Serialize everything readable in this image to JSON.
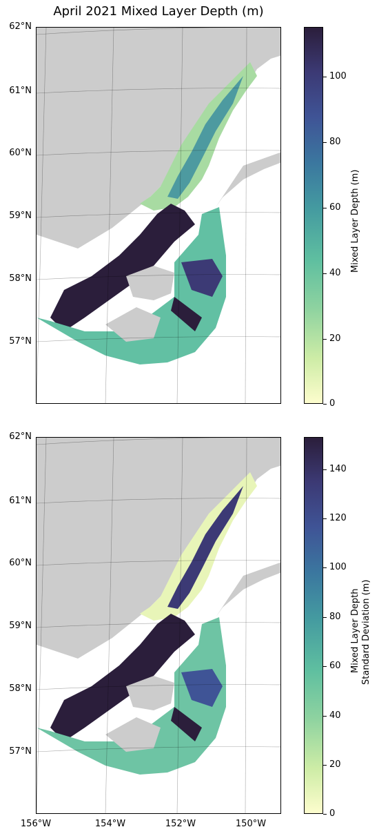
{
  "title": "April 2021 Mixed Layer Depth (m)",
  "lat_labels": [
    "62°N",
    "61°N",
    "60°N",
    "59°N",
    "58°N",
    "57°N"
  ],
  "lon_labels": [
    "156°W",
    "154°W",
    "152°W",
    "150°W"
  ],
  "panels": [
    {
      "colorbar_label_line1": "Mixed Layer Depth (m)",
      "colorbar_label_line2": "",
      "colorbar_ticks": [
        "0",
        "20",
        "40",
        "60",
        "80",
        "100"
      ],
      "colorbar_range": [
        0,
        115
      ]
    },
    {
      "colorbar_label_line1": "Mixed Layer Depth",
      "colorbar_label_line2": "Standard Deviation (m)",
      "colorbar_ticks": [
        "0",
        "20",
        "40",
        "60",
        "80",
        "100",
        "120",
        "140"
      ],
      "colorbar_range": [
        0,
        153
      ]
    }
  ],
  "colors": {
    "land": "#cccccc",
    "ocean": "#ffffff",
    "colormap": [
      "#fdfdcd",
      "#cdeca6",
      "#8fd3a0",
      "#5fbfa0",
      "#449aa0",
      "#3b779f",
      "#3f5496",
      "#3c3a75",
      "#2b1e3b"
    ]
  }
}
